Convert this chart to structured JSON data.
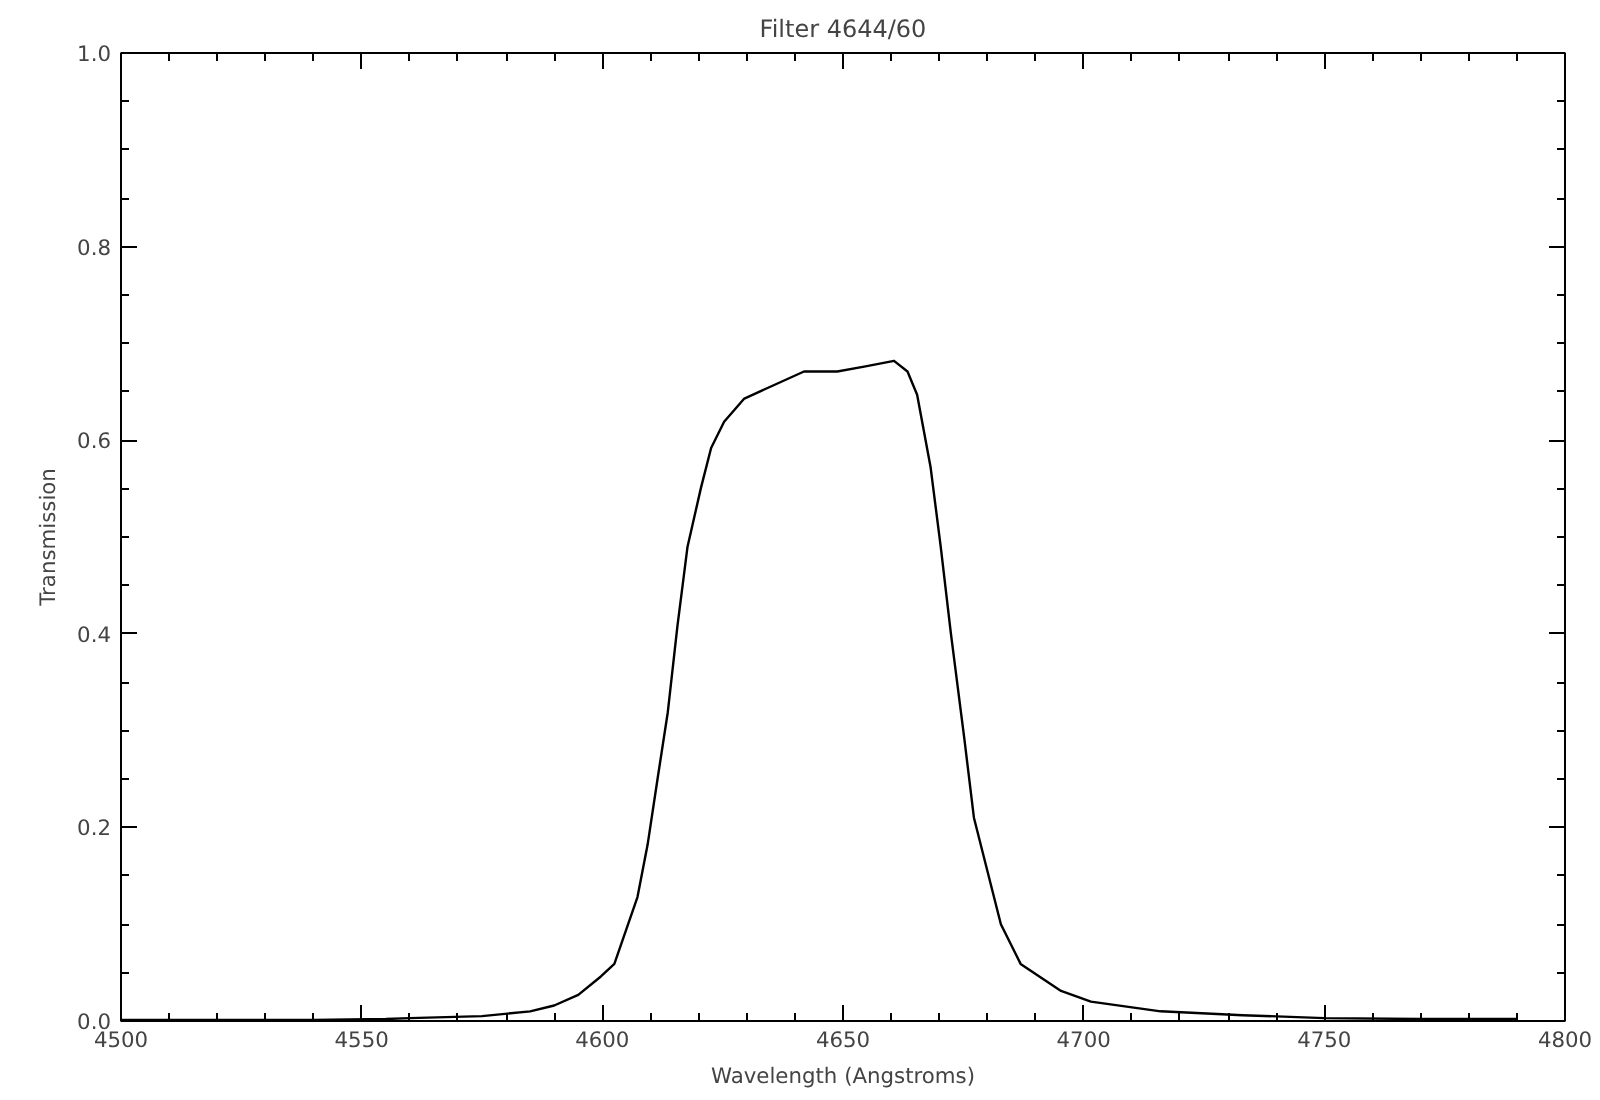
{
  "chart_data": {
    "type": "line",
    "title": "Filter 4644/60",
    "xlabel": "Wavelength (Angstroms)",
    "ylabel": "Transmission",
    "x": [
      4500,
      4520,
      4540,
      4555,
      4560,
      4575,
      4585,
      4590,
      4595,
      4599.7,
      4602.5,
      4607.3,
      4609.4,
      4611.5,
      4613.6,
      4615.6,
      4617.7,
      4620.5,
      4622.6,
      4625.3,
      4629.5,
      4635.7,
      4641.9,
      4648.8,
      4654.4,
      4660.6,
      4663.4,
      4665.4,
      4668.2,
      4670.3,
      4672.4,
      4675.2,
      4677.2,
      4680.0,
      4682.8,
      4686.9,
      4695.3,
      4701.5,
      4716,
      4733,
      4750,
      4770,
      4790
    ],
    "series": [
      {
        "color": "#000000",
        "values": [
          0.001,
          0.001,
          0.001,
          0.002,
          0.003,
          0.005,
          0.01,
          0.016,
          0.027,
          0.046,
          0.059,
          0.128,
          0.182,
          0.251,
          0.319,
          0.408,
          0.49,
          0.551,
          0.592,
          0.619,
          0.643,
          0.657,
          0.671,
          0.671,
          0.676,
          0.682,
          0.671,
          0.647,
          0.572,
          0.49,
          0.401,
          0.292,
          0.21,
          0.155,
          0.1,
          0.059,
          0.031,
          0.02,
          0.01,
          0.006,
          0.003,
          0.002,
          0.002
        ]
      }
    ],
    "xlim": [
      4500,
      4800
    ],
    "ylim": [
      0,
      1
    ],
    "xticks": [
      4500,
      4550,
      4600,
      4650,
      4700,
      4750,
      4800
    ],
    "yticks": [
      {
        "value": 0,
        "label": "0.0"
      },
      {
        "value": 0.2,
        "label": "0.2"
      },
      {
        "value": 0.4,
        "label": "0.4"
      },
      {
        "value": 0.6,
        "label": "0.6"
      },
      {
        "value": 0.8,
        "label": "0.8"
      },
      {
        "value": 1,
        "label": "1.0"
      }
    ],
    "marker": "none",
    "line_style": "solid"
  }
}
